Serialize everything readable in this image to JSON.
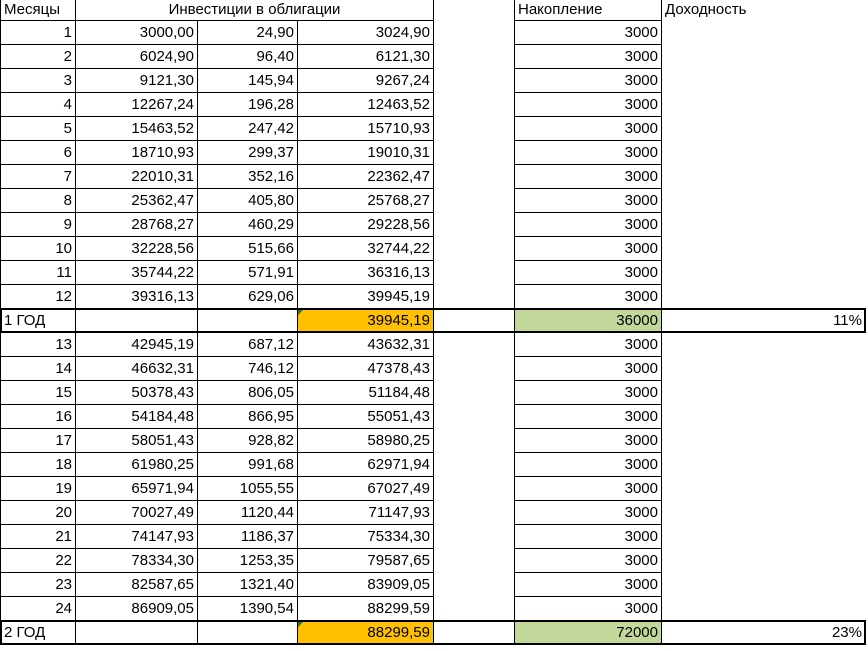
{
  "headers": {
    "months": "Месяцы",
    "investments": "Инвестиции в облигации",
    "accumulation": "Накопление",
    "yield": "Доходность"
  },
  "rows": [
    {
      "month": "1",
      "a": "3000,00",
      "b": "24,90",
      "c": "3024,90",
      "acc": "3000"
    },
    {
      "month": "2",
      "a": "6024,90",
      "b": "96,40",
      "c": "6121,30",
      "acc": "3000"
    },
    {
      "month": "3",
      "a": "9121,30",
      "b": "145,94",
      "c": "9267,24",
      "acc": "3000"
    },
    {
      "month": "4",
      "a": "12267,24",
      "b": "196,28",
      "c": "12463,52",
      "acc": "3000"
    },
    {
      "month": "5",
      "a": "15463,52",
      "b": "247,42",
      "c": "15710,93",
      "acc": "3000"
    },
    {
      "month": "6",
      "a": "18710,93",
      "b": "299,37",
      "c": "19010,31",
      "acc": "3000"
    },
    {
      "month": "7",
      "a": "22010,31",
      "b": "352,16",
      "c": "22362,47",
      "acc": "3000"
    },
    {
      "month": "8",
      "a": "25362,47",
      "b": "405,80",
      "c": "25768,27",
      "acc": "3000"
    },
    {
      "month": "9",
      "a": "28768,27",
      "b": "460,29",
      "c": "29228,56",
      "acc": "3000"
    },
    {
      "month": "10",
      "a": "32228,56",
      "b": "515,66",
      "c": "32744,22",
      "acc": "3000"
    },
    {
      "month": "11",
      "a": "35744,22",
      "b": "571,91",
      "c": "36316,13",
      "acc": "3000"
    },
    {
      "month": "12",
      "a": "39316,13",
      "b": "629,06",
      "c": "39945,19",
      "acc": "3000"
    },
    {
      "summary": true,
      "label": "1 ГОД",
      "c": "39945,19",
      "acc": "36000",
      "yield": "11%"
    },
    {
      "month": "13",
      "a": "42945,19",
      "b": "687,12",
      "c": "43632,31",
      "acc": "3000"
    },
    {
      "month": "14",
      "a": "46632,31",
      "b": "746,12",
      "c": "47378,43",
      "acc": "3000"
    },
    {
      "month": "15",
      "a": "50378,43",
      "b": "806,05",
      "c": "51184,48",
      "acc": "3000"
    },
    {
      "month": "16",
      "a": "54184,48",
      "b": "866,95",
      "c": "55051,43",
      "acc": "3000"
    },
    {
      "month": "17",
      "a": "58051,43",
      "b": "928,82",
      "c": "58980,25",
      "acc": "3000"
    },
    {
      "month": "18",
      "a": "61980,25",
      "b": "991,68",
      "c": "62971,94",
      "acc": "3000"
    },
    {
      "month": "19",
      "a": "65971,94",
      "b": "1055,55",
      "c": "67027,49",
      "acc": "3000"
    },
    {
      "month": "20",
      "a": "70027,49",
      "b": "1120,44",
      "c": "71147,93",
      "acc": "3000"
    },
    {
      "month": "21",
      "a": "74147,93",
      "b": "1186,37",
      "c": "75334,30",
      "acc": "3000"
    },
    {
      "month": "22",
      "a": "78334,30",
      "b": "1253,35",
      "c": "79587,65",
      "acc": "3000"
    },
    {
      "month": "23",
      "a": "82587,65",
      "b": "1321,40",
      "c": "83909,05",
      "acc": "3000"
    },
    {
      "month": "24",
      "a": "86909,05",
      "b": "1390,54",
      "c": "88299,59",
      "acc": "3000"
    },
    {
      "summary": true,
      "label": "2 ГОД",
      "c": "88299,59",
      "acc": "72000",
      "yield": "23%"
    }
  ],
  "colors": {
    "highlight_orange": "#ffc000",
    "highlight_green": "#c4d79b",
    "error_marker": "#1f7a36"
  }
}
